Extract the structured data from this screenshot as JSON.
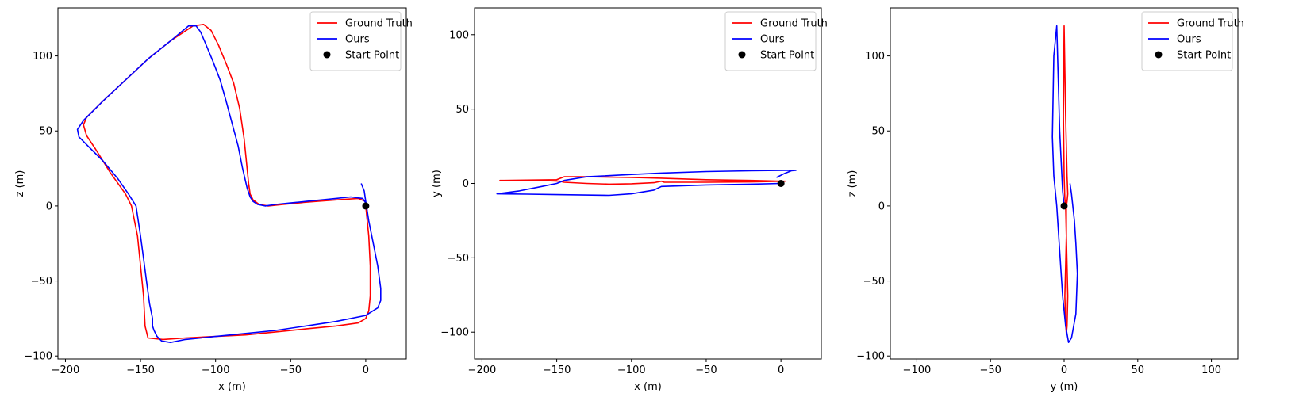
{
  "chart_data": [
    {
      "type": "line",
      "xlabel": "x (m)",
      "ylabel": "z (m)",
      "xlim": [
        -205,
        27
      ],
      "ylim": [
        -102,
        132
      ],
      "xticks": [
        -200,
        -150,
        -100,
        -50,
        0
      ],
      "yticks": [
        -100,
        -50,
        0,
        50,
        100
      ],
      "xtick_labels": [
        "−200",
        "−150",
        "−100",
        "−50",
        "0"
      ],
      "ytick_labels": [
        "−100",
        "−50",
        "0",
        "50",
        "100"
      ],
      "grid": false,
      "legend_position": "upper right",
      "legend": [
        {
          "label": "Ground Truth",
          "color": "#ff0000",
          "kind": "line"
        },
        {
          "label": "Ours",
          "color": "#0000ff",
          "kind": "line"
        },
        {
          "label": "Start Point",
          "color": "#000000",
          "kind": "marker"
        }
      ],
      "series": [
        {
          "name": "Ground Truth",
          "color": "#ff0000",
          "x": [
            0,
            2,
            3,
            3,
            2,
            0,
            -5,
            -20,
            -40,
            -60,
            -80,
            -100,
            -120,
            -135,
            -145,
            -147,
            -148,
            -150,
            -152,
            -156,
            -160,
            -170,
            -180,
            -186,
            -188,
            -186,
            -175,
            -160,
            -145,
            -130,
            -115,
            -108,
            -103,
            -98,
            -93,
            -88,
            -84,
            -81,
            -79,
            -78,
            -77,
            -75,
            -71,
            -65,
            -55,
            -40,
            -20,
            -5,
            0
          ],
          "y": [
            0,
            -20,
            -40,
            -60,
            -70,
            -75,
            -78,
            -80,
            -82,
            -84,
            -86,
            -87,
            -88,
            -89,
            -88,
            -80,
            -60,
            -40,
            -20,
            0,
            8,
            22,
            38,
            47,
            54,
            59,
            70,
            84,
            98,
            110,
            120,
            121,
            117,
            107,
            95,
            82,
            65,
            45,
            25,
            15,
            8,
            4,
            1,
            0,
            1,
            2.5,
            4,
            5,
            3
          ]
        },
        {
          "name": "Ours",
          "color": "#0000ff",
          "x": [
            -3,
            -1,
            0,
            2,
            5,
            8,
            10,
            10,
            8,
            0,
            -20,
            -40,
            -60,
            -80,
            -100,
            -120,
            -130,
            -136,
            -139,
            -141,
            -142,
            -142,
            -144,
            -146,
            -148,
            -150,
            -153,
            -158,
            -165,
            -175,
            -185,
            -191,
            -192,
            -188,
            -175,
            -160,
            -145,
            -130,
            -118,
            -113,
            -110,
            -107,
            -102,
            -97,
            -93,
            -89,
            -85,
            -82,
            -79,
            -77,
            -75,
            -72,
            -67,
            -60,
            -50,
            -40,
            -25,
            -10,
            -2,
            0,
            -1
          ],
          "y": [
            15,
            10,
            3,
            -10,
            -25,
            -40,
            -55,
            -63,
            -68,
            -73,
            -77,
            -80,
            -83,
            -85,
            -87,
            -89,
            -91,
            -90,
            -87,
            -83,
            -80,
            -75,
            -65,
            -50,
            -35,
            -20,
            0,
            8,
            18,
            30,
            40,
            46,
            51,
            57,
            70,
            84,
            98,
            110,
            120,
            120,
            116,
            109,
            97,
            84,
            70,
            55,
            40,
            25,
            12,
            6,
            3,
            1,
            0,
            1,
            2,
            3,
            4.5,
            6,
            5,
            2,
            0
          ]
        }
      ],
      "start_point": {
        "x": 0,
        "y": 0
      }
    },
    {
      "type": "line",
      "xlabel": "x (m)",
      "ylabel": "y (m)",
      "xlim": [
        -205,
        27
      ],
      "ylim": [
        -118,
        118
      ],
      "xticks": [
        -200,
        -150,
        -100,
        -50,
        0
      ],
      "yticks": [
        -100,
        -50,
        0,
        50,
        100
      ],
      "xtick_labels": [
        "−200",
        "−150",
        "−100",
        "−50",
        "0"
      ],
      "ytick_labels": [
        "−100",
        "−50",
        "0",
        "50",
        "100"
      ],
      "grid": false,
      "legend_position": "upper right",
      "legend": [
        {
          "label": "Ground Truth",
          "color": "#ff0000",
          "kind": "line"
        },
        {
          "label": "Ours",
          "color": "#0000ff",
          "kind": "line"
        },
        {
          "label": "Start Point",
          "color": "#000000",
          "kind": "marker"
        }
      ],
      "series": [
        {
          "name": "Ground Truth",
          "color": "#ff0000",
          "x": [
            3,
            -20,
            -50,
            -78,
            -80,
            -85,
            -100,
            -115,
            -130,
            -145,
            -148,
            -160,
            -175,
            -188,
            -150,
            -145,
            -130,
            -100,
            -80,
            -50,
            -20,
            0,
            3
          ],
          "y": [
            1.5,
            1,
            0.8,
            0.8,
            1.5,
            0.5,
            -0.2,
            -0.5,
            0,
            0.8,
            1.5,
            2,
            2,
            2,
            2.5,
            4.5,
            4.5,
            4,
            3.5,
            2.5,
            2,
            1.5,
            1.5
          ]
        },
        {
          "name": "Ours",
          "color": "#0000ff",
          "x": [
            -3,
            2,
            7,
            10,
            3,
            -20,
            -50,
            -80,
            -100,
            -130,
            -145,
            -150,
            -160,
            -175,
            -190,
            -170,
            -150,
            -115,
            -100,
            -85,
            -80,
            -50,
            -20,
            0
          ],
          "y": [
            4,
            6.5,
            8.5,
            8.8,
            8.8,
            8.5,
            8,
            7,
            6,
            4.5,
            2,
            0,
            -2,
            -5,
            -7,
            -7.2,
            -7.5,
            -8,
            -7,
            -4.5,
            -2,
            -1,
            -0.5,
            0
          ]
        }
      ],
      "start_point": {
        "x": 0,
        "y": 0
      }
    },
    {
      "type": "line",
      "xlabel": "y (m)",
      "ylabel": "z (m)",
      "xlim": [
        -118,
        118
      ],
      "ylim": [
        -102,
        132
      ],
      "xticks": [
        -100,
        -50,
        0,
        50,
        100
      ],
      "yticks": [
        -100,
        -50,
        0,
        50,
        100
      ],
      "xtick_labels": [
        "−100",
        "−50",
        "0",
        "50",
        "100"
      ],
      "ytick_labels": [
        "−100",
        "−50",
        "0",
        "50",
        "100"
      ],
      "grid": false,
      "legend_position": "upper right",
      "legend": [
        {
          "label": "Ground Truth",
          "color": "#ff0000",
          "kind": "line"
        },
        {
          "label": "Ours",
          "color": "#0000ff",
          "kind": "line"
        },
        {
          "label": "Start Point",
          "color": "#000000",
          "kind": "marker"
        }
      ],
      "series": [
        {
          "name": "Ground Truth",
          "color": "#ff0000",
          "x": [
            1.5,
            1.5,
            1,
            0.5,
            1,
            1.5,
            2,
            2.5,
            2,
            1.5,
            1,
            0.5,
            0,
            -0.5,
            0,
            1,
            2,
            2.5,
            2,
            1.5
          ],
          "y": [
            0,
            -20,
            -40,
            -60,
            -78,
            -85,
            -80,
            -60,
            -40,
            -20,
            0,
            5,
            20,
            60,
            120,
            60,
            20,
            8,
            3,
            0
          ]
        },
        {
          "name": "Ours",
          "color": "#0000ff",
          "x": [
            4,
            5,
            7,
            8,
            9,
            8,
            5,
            3,
            1,
            -1,
            -3,
            -5,
            -7,
            -8,
            -7,
            -5,
            -3,
            -1,
            0
          ],
          "y": [
            15,
            8,
            -10,
            -25,
            -45,
            -72,
            -88,
            -91,
            -80,
            -60,
            -30,
            0,
            20,
            46,
            100,
            120,
            50,
            10,
            0
          ]
        }
      ],
      "start_point": {
        "x": 0,
        "y": 0
      }
    }
  ]
}
